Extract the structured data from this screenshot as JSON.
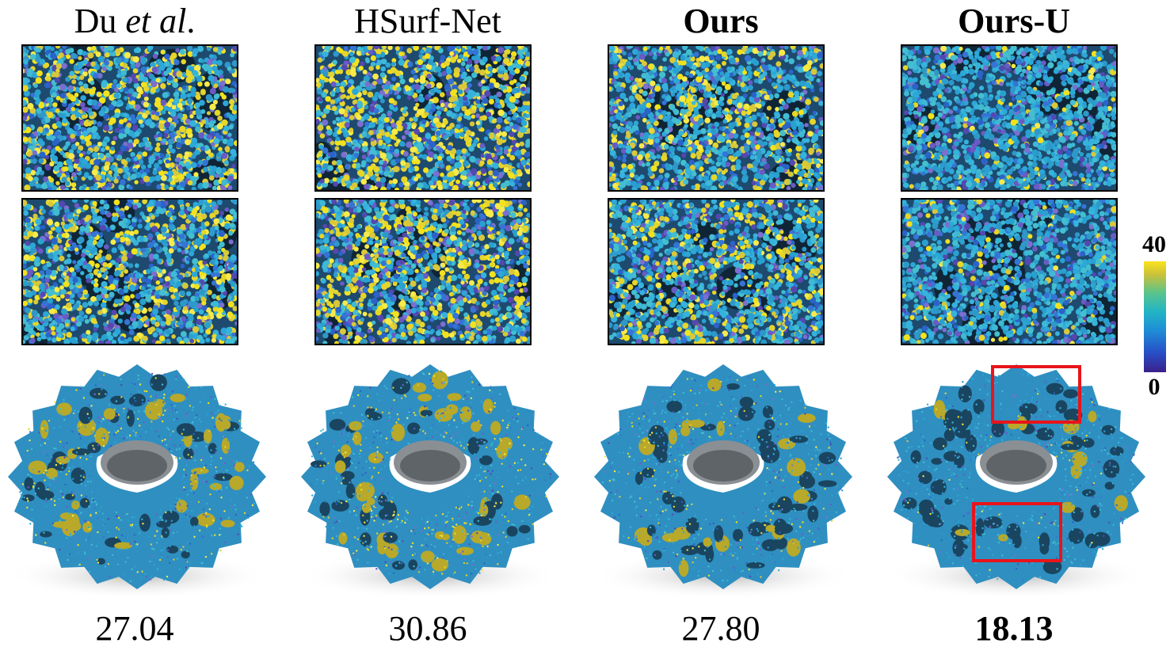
{
  "colorbar": {
    "max_label": "40",
    "min_label": "0"
  },
  "columns": [
    {
      "title_main": "Du ",
      "title_italic": "et al",
      "title_tail": ".",
      "score": "27.04",
      "bold": false,
      "yellow": 0.3
    },
    {
      "title_main": "HSurf-Net",
      "title_italic": "",
      "title_tail": "",
      "score": "30.86",
      "bold": false,
      "yellow": 0.38
    },
    {
      "title_main": "Ours",
      "title_italic": "",
      "title_tail": "",
      "score": "27.80",
      "bold": true,
      "yellow": 0.24
    },
    {
      "title_main": "Ours-U",
      "title_italic": "",
      "title_tail": "",
      "score": "18.13",
      "bold": true,
      "yellow": 0.08
    }
  ]
}
